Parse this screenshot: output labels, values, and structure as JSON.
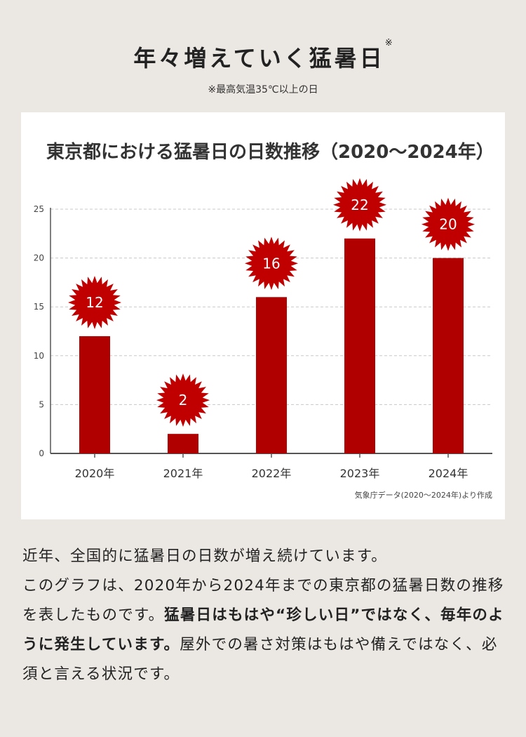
{
  "header": {
    "title": "年々増えていく猛暑日",
    "title_mark": "※",
    "note": "※最高気温35℃以上の日"
  },
  "chart_data": {
    "type": "bar",
    "title": "東京都における猛暑日の日数推移（2020〜2024年）",
    "categories": [
      "2020年",
      "2021年",
      "2022年",
      "2023年",
      "2024年"
    ],
    "values": [
      12,
      2,
      16,
      22,
      20
    ],
    "data_labels": [
      "12",
      "2",
      "16",
      "22",
      "20"
    ],
    "ylim": [
      0,
      25
    ],
    "yticks": [
      0,
      5,
      10,
      15,
      20,
      25
    ],
    "grid": true,
    "bar_color": "#b00000",
    "label_burst_color": "#c00000",
    "source": "気象庁データ(2020〜2024年)より作成"
  },
  "body": {
    "line1": "近年、全国的に猛暑日の日数が増え続けています。",
    "line2_pre": "このグラフは、2020年から2024年までの東京都の猛暑日数の推移を表したものです。",
    "line2_bold": "猛暑日はもはや“珍しい日”ではなく、毎年のように発生しています。",
    "line2_post": "屋外での暑さ対策はもはや備えではなく、必須と言える状況です。"
  }
}
